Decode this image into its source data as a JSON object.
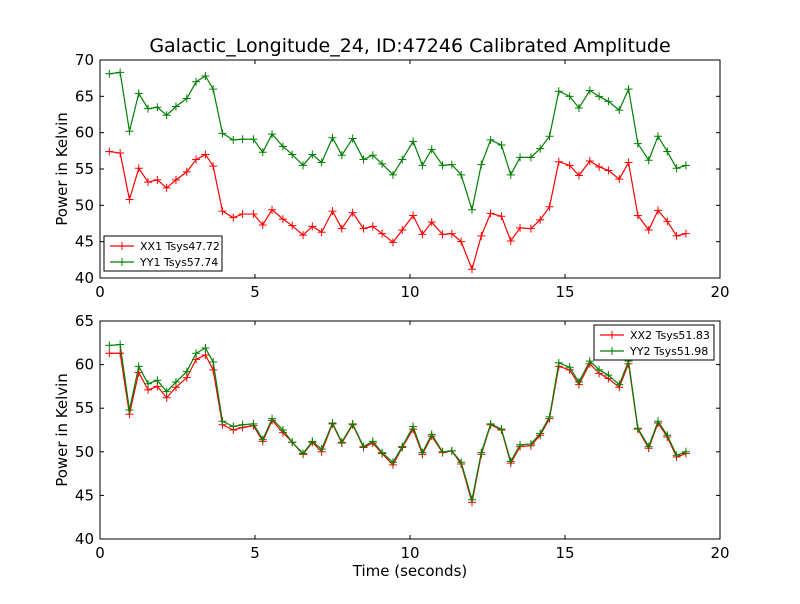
{
  "chart_data": [
    {
      "type": "line",
      "title": "Galactic_Longitude_24, ID:47246 Calibrated Amplitude",
      "xlabel": "",
      "ylabel": "Power in Kelvin",
      "xlim": [
        0,
        20
      ],
      "ylim": [
        40,
        70
      ],
      "xticks": [
        "0",
        "5",
        "10",
        "15",
        "20"
      ],
      "yticks": [
        "40",
        "45",
        "50",
        "55",
        "60",
        "65",
        "70"
      ],
      "grid": false,
      "legend_position": "lower-left",
      "x": [
        0.3,
        0.65,
        0.95,
        1.25,
        1.55,
        1.85,
        2.15,
        2.45,
        2.8,
        3.1,
        3.4,
        3.65,
        3.95,
        4.3,
        4.6,
        4.95,
        5.25,
        5.55,
        5.9,
        6.2,
        6.55,
        6.85,
        7.15,
        7.5,
        7.8,
        8.15,
        8.5,
        8.8,
        9.1,
        9.45,
        9.75,
        10.1,
        10.4,
        10.7,
        11.05,
        11.35,
        11.65,
        12.0,
        12.3,
        12.6,
        12.95,
        13.25,
        13.55,
        13.9,
        14.2,
        14.5,
        14.8,
        15.15,
        15.45,
        15.8,
        16.1,
        16.4,
        16.75,
        17.05,
        17.35,
        17.7,
        18.0,
        18.3,
        18.6,
        18.9
      ],
      "series": [
        {
          "name": "XX1 Tsys47.72",
          "color": "#ff0000",
          "values": [
            57.4,
            57.2,
            50.8,
            55.1,
            53.2,
            53.5,
            52.4,
            53.5,
            54.6,
            56.3,
            57.0,
            55.4,
            49.2,
            48.3,
            48.8,
            48.8,
            47.3,
            49.4,
            48.1,
            47.2,
            45.9,
            47.1,
            46.3,
            49.2,
            46.8,
            49.0,
            46.8,
            47.1,
            46.1,
            44.9,
            46.6,
            48.6,
            46.0,
            47.7,
            46.0,
            46.1,
            45.0,
            41.2,
            45.8,
            48.9,
            48.5,
            45.1,
            46.9,
            46.8,
            48.0,
            49.8,
            56.0,
            55.5,
            54.1,
            56.1,
            55.3,
            54.8,
            53.6,
            55.9,
            48.6,
            46.6,
            49.3,
            47.8,
            45.8,
            46.1
          ]
        },
        {
          "name": "YY1 Tsys57.74",
          "color": "#008000",
          "values": [
            68.1,
            68.3,
            60.2,
            65.4,
            63.3,
            63.5,
            62.4,
            63.6,
            64.7,
            67.0,
            67.8,
            66.0,
            59.9,
            59.0,
            59.1,
            59.1,
            57.3,
            59.8,
            58.1,
            57.0,
            55.5,
            57.0,
            55.9,
            59.3,
            56.9,
            59.2,
            56.3,
            56.9,
            55.7,
            54.2,
            56.3,
            58.8,
            55.5,
            57.7,
            55.5,
            55.6,
            54.2,
            49.4,
            55.6,
            59.0,
            58.3,
            54.2,
            56.6,
            56.6,
            57.8,
            59.5,
            65.7,
            65.0,
            63.4,
            65.8,
            65.0,
            64.3,
            63.1,
            66.0,
            58.5,
            56.2,
            59.5,
            57.4,
            55.1,
            55.5
          ]
        }
      ]
    },
    {
      "type": "line",
      "title": "",
      "xlabel": "Time (seconds)",
      "ylabel": "Power in Kelvin",
      "xlim": [
        0,
        20
      ],
      "ylim": [
        40,
        65
      ],
      "xticks": [
        "0",
        "5",
        "10",
        "15",
        "20"
      ],
      "yticks": [
        "40",
        "45",
        "50",
        "55",
        "60",
        "65"
      ],
      "grid": false,
      "legend_position": "top-right",
      "x": [
        0.3,
        0.65,
        0.95,
        1.25,
        1.55,
        1.85,
        2.15,
        2.45,
        2.8,
        3.1,
        3.4,
        3.65,
        3.95,
        4.3,
        4.6,
        4.95,
        5.25,
        5.55,
        5.9,
        6.2,
        6.55,
        6.85,
        7.15,
        7.5,
        7.8,
        8.15,
        8.5,
        8.8,
        9.1,
        9.45,
        9.75,
        10.1,
        10.4,
        10.7,
        11.05,
        11.35,
        11.65,
        12.0,
        12.3,
        12.6,
        12.95,
        13.25,
        13.55,
        13.9,
        14.2,
        14.5,
        14.8,
        15.15,
        15.45,
        15.8,
        16.1,
        16.4,
        16.75,
        17.05,
        17.35,
        17.7,
        18.0,
        18.3,
        18.6,
        18.9
      ],
      "series": [
        {
          "name": "XX2 Tsys51.83",
          "color": "#ff0000",
          "values": [
            61.3,
            61.3,
            54.3,
            59.1,
            57.1,
            57.5,
            56.2,
            57.4,
            58.5,
            60.6,
            61.1,
            59.4,
            53.1,
            52.5,
            52.8,
            53.0,
            51.2,
            53.6,
            52.2,
            51.1,
            49.7,
            51.1,
            50.0,
            53.2,
            51.0,
            53.1,
            50.5,
            51.0,
            49.8,
            48.5,
            50.5,
            52.6,
            49.7,
            51.8,
            49.9,
            50.1,
            48.6,
            44.2,
            49.7,
            53.1,
            52.5,
            48.7,
            50.6,
            50.7,
            51.9,
            53.8,
            59.8,
            59.4,
            57.7,
            60.1,
            59.0,
            58.4,
            57.4,
            60.1,
            52.6,
            50.4,
            53.3,
            51.7,
            49.4,
            49.8
          ]
        },
        {
          "name": "YY2 Tsys51.98",
          "color": "#008000",
          "values": [
            62.2,
            62.3,
            54.8,
            59.8,
            57.8,
            58.2,
            56.9,
            58.0,
            59.2,
            61.3,
            61.9,
            60.3,
            53.5,
            52.9,
            53.1,
            53.2,
            51.4,
            53.8,
            52.5,
            51.1,
            49.8,
            51.2,
            50.3,
            53.3,
            51.1,
            53.2,
            50.6,
            51.2,
            49.9,
            48.8,
            50.6,
            52.9,
            49.9,
            52.0,
            50.0,
            50.1,
            48.8,
            44.5,
            49.9,
            53.2,
            52.6,
            48.9,
            50.8,
            50.9,
            52.1,
            54.0,
            60.2,
            59.7,
            58.0,
            60.4,
            59.4,
            58.8,
            57.7,
            60.4,
            52.7,
            50.6,
            53.5,
            51.9,
            49.6,
            50.0
          ]
        }
      ]
    }
  ]
}
